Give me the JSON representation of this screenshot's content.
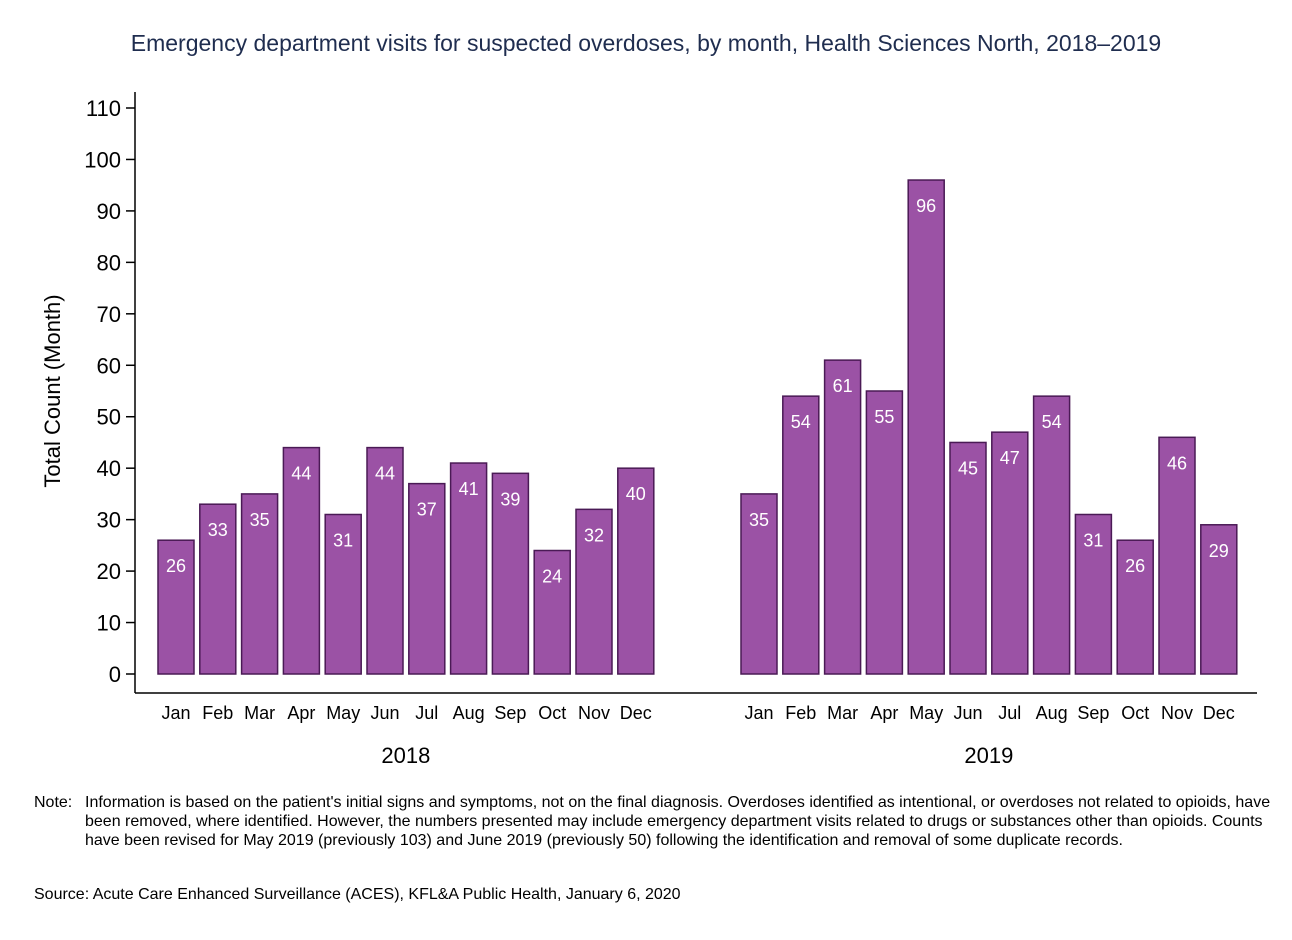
{
  "chart_data": {
    "type": "bar",
    "title": "Emergency department visits for suspected overdoses, by month, Health Sciences North, 2018–2019",
    "xlabel": "",
    "ylabel": "Total Count (Month)",
    "ylim": [
      0,
      110
    ],
    "yticks": [
      0,
      10,
      20,
      30,
      40,
      50,
      60,
      70,
      80,
      90,
      100,
      110
    ],
    "grid": false,
    "bar_color": "#9b52a5",
    "bar_edge_color": "#4a1a55",
    "label_color": "#ffffff",
    "groups": [
      {
        "name": "2018",
        "categories": [
          "Jan",
          "Feb",
          "Mar",
          "Apr",
          "May",
          "Jun",
          "Jul",
          "Aug",
          "Sep",
          "Oct",
          "Nov",
          "Dec"
        ],
        "values": [
          26,
          33,
          35,
          44,
          31,
          44,
          37,
          41,
          39,
          24,
          32,
          40
        ]
      },
      {
        "name": "2019",
        "categories": [
          "Jan",
          "Feb",
          "Mar",
          "Apr",
          "May",
          "Jun",
          "Jul",
          "Aug",
          "Sep",
          "Oct",
          "Nov",
          "Dec"
        ],
        "values": [
          35,
          54,
          61,
          55,
          96,
          45,
          47,
          54,
          31,
          26,
          46,
          29
        ]
      }
    ]
  },
  "footer": {
    "note_prefix": "Note:",
    "note_text": "Information is based on the patient's initial signs and symptoms, not on the final diagnosis. Overdoses identified as intentional, or overdoses not related to opioids, have been removed, where identified. However, the numbers presented may include emergency department visits related to drugs or substances other than opioids. Counts have been revised for May 2019 (previously 103) and June 2019 (previously 50) following the identification and removal of some duplicate records.",
    "source": "Source: Acute Care Enhanced Surveillance (ACES), KFL&A Public Health, January 6, 2020"
  }
}
